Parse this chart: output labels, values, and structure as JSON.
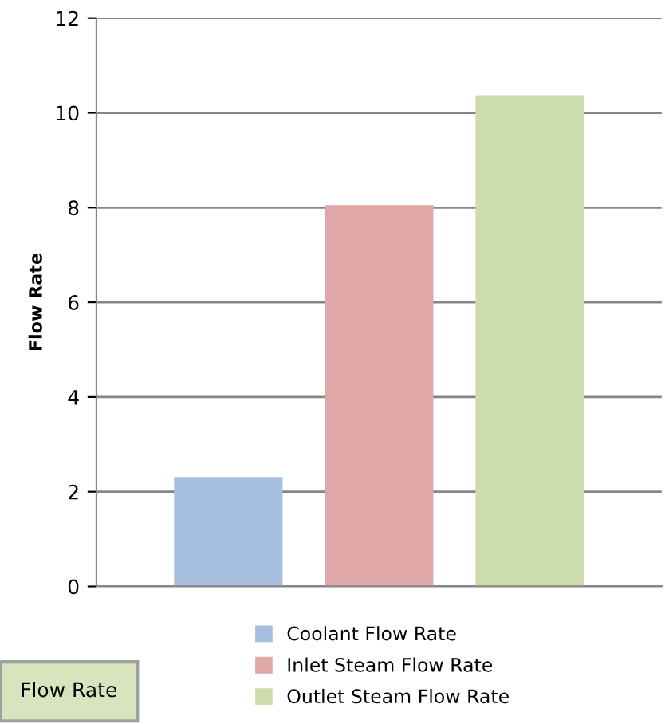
{
  "chart_data": {
    "type": "bar",
    "ylabel": "Flow Rate",
    "categories": [
      null
    ],
    "series": [
      {
        "name": "Coolant Flow Rate",
        "color": "#a7bfde",
        "values": [
          2.31
        ]
      },
      {
        "name": "Inlet Steam Flow Rate",
        "color": "#dfa7a6",
        "values": [
          8.05
        ]
      },
      {
        "name": "Outlet Steam Flow Rate",
        "color": "#cddcac",
        "values": [
          10.37
        ]
      }
    ],
    "ylim": [
      0,
      12
    ],
    "yticks": [
      0,
      2,
      4,
      6,
      8,
      10,
      12
    ],
    "grid": "y",
    "legend": "bottom",
    "annotations": [
      "Flow Rate"
    ]
  }
}
